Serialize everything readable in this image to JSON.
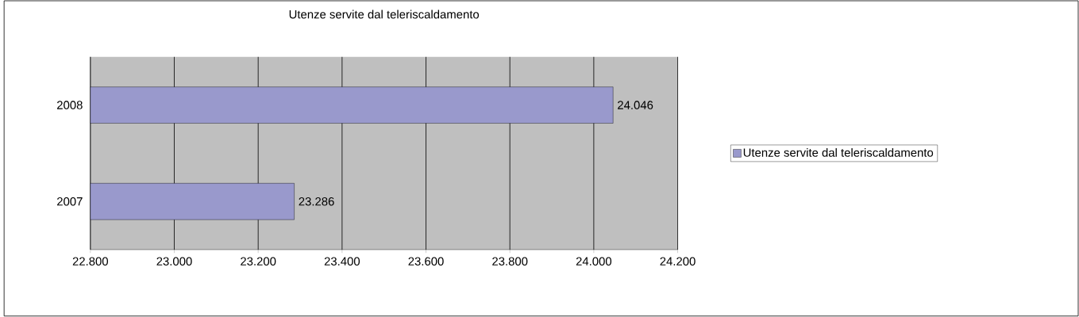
{
  "chart_data": {
    "type": "bar",
    "orientation": "horizontal",
    "title": "Utenze servite dal teleriscaldamento",
    "categories": [
      "2008",
      "2007"
    ],
    "series": [
      {
        "name": "Utenze servite dal teleriscaldamento",
        "color": "#9999cc",
        "values": [
          24046,
          23286
        ],
        "value_labels": [
          "24.046",
          "23.286"
        ]
      }
    ],
    "xlim": [
      22800,
      24200
    ],
    "xticks": [
      {
        "value": 22800,
        "label": "22.800"
      },
      {
        "value": 23000,
        "label": "23.000"
      },
      {
        "value": 23200,
        "label": "23.200"
      },
      {
        "value": 23400,
        "label": "23.400"
      },
      {
        "value": 23600,
        "label": "23.600"
      },
      {
        "value": 23800,
        "label": "23.800"
      },
      {
        "value": 24000,
        "label": "24.000"
      },
      {
        "value": 24200,
        "label": "24.200"
      }
    ],
    "grid": "x",
    "legend": "right"
  }
}
